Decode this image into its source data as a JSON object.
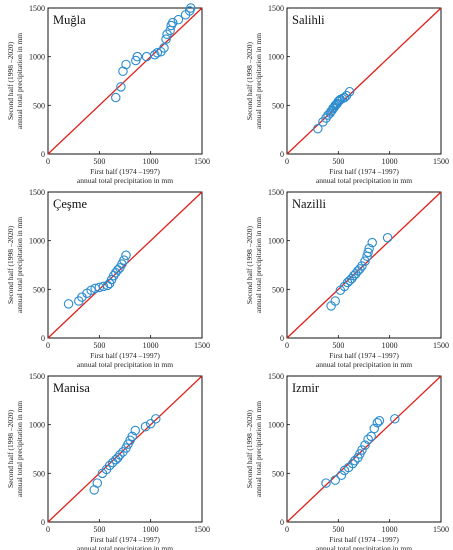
{
  "chart_data": [
    {
      "type": "scatter",
      "title": "Muğla",
      "xlabel_line1": "First half (1974 –1997)",
      "xlabel_line2": "annual total precipitation in mm",
      "ylabel_line1": "Second half (1998 –2020)",
      "ylabel_line2": "annual total precipitation in mm",
      "xlim": [
        0,
        1500
      ],
      "ylim": [
        0,
        1500
      ],
      "xticks": [
        0,
        500,
        1000,
        1500
      ],
      "yticks": [
        0,
        500,
        1000,
        1500
      ],
      "reference_line": "1:1",
      "points": [
        [
          660,
          580
        ],
        [
          710,
          690
        ],
        [
          730,
          850
        ],
        [
          760,
          920
        ],
        [
          855,
          960
        ],
        [
          870,
          1000
        ],
        [
          960,
          1000
        ],
        [
          1040,
          1020
        ],
        [
          1065,
          1040
        ],
        [
          1100,
          1050
        ],
        [
          1130,
          1090
        ],
        [
          1150,
          1180
        ],
        [
          1160,
          1230
        ],
        [
          1190,
          1270
        ],
        [
          1200,
          1320
        ],
        [
          1215,
          1350
        ],
        [
          1270,
          1380
        ],
        [
          1340,
          1430
        ],
        [
          1380,
          1470
        ],
        [
          1390,
          1500
        ]
      ]
    },
    {
      "type": "scatter",
      "title": "Salihli",
      "xlabel_line1": "First half (1974 –1997)",
      "xlabel_line2": "annual total precipitation in mm",
      "ylabel_line1": "Second half (1998 –2020)",
      "ylabel_line2": "annual total precipitation in mm",
      "xlim": [
        0,
        1500
      ],
      "ylim": [
        0,
        1500
      ],
      "xticks": [
        0,
        500,
        1000,
        1500
      ],
      "yticks": [
        0,
        500,
        1000,
        1500
      ],
      "reference_line": "1:1",
      "points": [
        [
          300,
          260
        ],
        [
          350,
          330
        ],
        [
          380,
          370
        ],
        [
          400,
          400
        ],
        [
          420,
          420
        ],
        [
          430,
          440
        ],
        [
          440,
          450
        ],
        [
          450,
          470
        ],
        [
          460,
          480
        ],
        [
          470,
          500
        ],
        [
          480,
          510
        ],
        [
          490,
          520
        ],
        [
          500,
          540
        ],
        [
          510,
          550
        ],
        [
          520,
          560
        ],
        [
          540,
          570
        ],
        [
          560,
          580
        ],
        [
          580,
          600
        ],
        [
          610,
          640
        ]
      ]
    },
    {
      "type": "scatter",
      "title": "Çeşme",
      "xlabel_line1": "First half (1974 –1997)",
      "xlabel_line2": "annual total precipitation in mm",
      "ylabel_line1": "Second half (1998 –2020)",
      "ylabel_line2": "annual total precipitation in mm",
      "xlim": [
        0,
        1500
      ],
      "ylim": [
        0,
        1500
      ],
      "xticks": [
        0,
        500,
        1000,
        1500
      ],
      "yticks": [
        0,
        500,
        1000,
        1500
      ],
      "reference_line": "1:1",
      "points": [
        [
          200,
          350
        ],
        [
          300,
          380
        ],
        [
          330,
          420
        ],
        [
          380,
          460
        ],
        [
          420,
          490
        ],
        [
          460,
          510
        ],
        [
          500,
          520
        ],
        [
          540,
          530
        ],
        [
          580,
          540
        ],
        [
          600,
          560
        ],
        [
          620,
          600
        ],
        [
          640,
          640
        ],
        [
          660,
          670
        ],
        [
          680,
          700
        ],
        [
          700,
          720
        ],
        [
          720,
          760
        ],
        [
          740,
          800
        ],
        [
          760,
          850
        ]
      ]
    },
    {
      "type": "scatter",
      "title": "Nazilli",
      "xlabel_line1": "First half (1974 –1997)",
      "xlabel_line2": "annual total precipitation in mm",
      "ylabel_line1": "Second half (1998 –2020)",
      "ylabel_line2": "annual total precipitation in mm",
      "xlim": [
        0,
        1500
      ],
      "ylim": [
        0,
        1500
      ],
      "xticks": [
        0,
        500,
        1000,
        1500
      ],
      "yticks": [
        0,
        500,
        1000,
        1500
      ],
      "reference_line": "1:1",
      "points": [
        [
          430,
          330
        ],
        [
          470,
          380
        ],
        [
          520,
          490
        ],
        [
          560,
          530
        ],
        [
          590,
          570
        ],
        [
          610,
          590
        ],
        [
          630,
          610
        ],
        [
          650,
          640
        ],
        [
          670,
          660
        ],
        [
          690,
          690
        ],
        [
          710,
          710
        ],
        [
          730,
          740
        ],
        [
          760,
          790
        ],
        [
          780,
          840
        ],
        [
          790,
          880
        ],
        [
          800,
          920
        ],
        [
          830,
          980
        ],
        [
          980,
          1030
        ]
      ]
    },
    {
      "type": "scatter",
      "title": "Manisa",
      "xlabel_line1": "First half (1974 –1997)",
      "xlabel_line2": "annual total precipitation in mm",
      "ylabel_line1": "Second half (1998 –2020)",
      "ylabel_line2": "annual total precipitation in mm",
      "xlim": [
        0,
        1500
      ],
      "ylim": [
        0,
        1500
      ],
      "xticks": [
        0,
        500,
        1000,
        1500
      ],
      "yticks": [
        0,
        500,
        1000,
        1500
      ],
      "reference_line": "1:1",
      "points": [
        [
          450,
          330
        ],
        [
          480,
          400
        ],
        [
          530,
          500
        ],
        [
          570,
          540
        ],
        [
          600,
          580
        ],
        [
          630,
          610
        ],
        [
          660,
          640
        ],
        [
          680,
          660
        ],
        [
          700,
          690
        ],
        [
          730,
          720
        ],
        [
          760,
          760
        ],
        [
          780,
          800
        ],
        [
          800,
          840
        ],
        [
          820,
          880
        ],
        [
          850,
          940
        ],
        [
          950,
          980
        ],
        [
          1000,
          1010
        ],
        [
          1050,
          1060
        ]
      ]
    },
    {
      "type": "scatter",
      "title": "Izmir",
      "xlabel_line1": "First half (1974 –1997)",
      "xlabel_line2": "annual total precipitation in mm",
      "ylabel_line1": "Second half (1998 –2020)",
      "ylabel_line2": "annual total precipitation in mm",
      "xlim": [
        0,
        1500
      ],
      "ylim": [
        0,
        1500
      ],
      "xticks": [
        0,
        500,
        1000,
        1500
      ],
      "yticks": [
        0,
        500,
        1000,
        1500
      ],
      "reference_line": "1:1",
      "points": [
        [
          380,
          400
        ],
        [
          470,
          430
        ],
        [
          530,
          480
        ],
        [
          560,
          530
        ],
        [
          600,
          560
        ],
        [
          640,
          600
        ],
        [
          660,
          630
        ],
        [
          690,
          660
        ],
        [
          710,
          700
        ],
        [
          730,
          740
        ],
        [
          760,
          790
        ],
        [
          790,
          850
        ],
        [
          820,
          880
        ],
        [
          850,
          960
        ],
        [
          880,
          1020
        ],
        [
          900,
          1040
        ],
        [
          1050,
          1060
        ]
      ]
    }
  ]
}
